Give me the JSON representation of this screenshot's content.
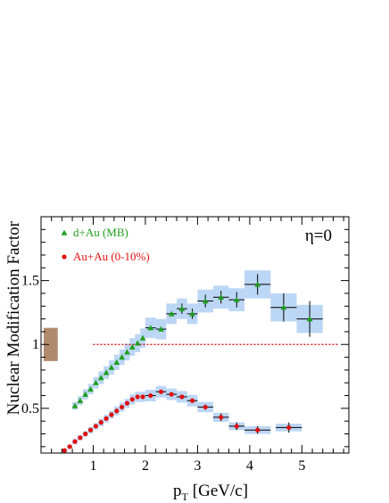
{
  "chart_data": {
    "type": "scatter",
    "title": "",
    "annotation": "η=0",
    "xlabel": "p",
    "xlabel_sub": "T",
    "xlabel_unit": "[GeV/c]",
    "ylabel": "Nuclear Modification Factor",
    "xlim": [
      0.0,
      5.9
    ],
    "ylim": [
      0.15,
      2.0
    ],
    "x_ticks": [
      {
        "value": 1,
        "label": "1"
      },
      {
        "value": 2,
        "label": "2"
      },
      {
        "value": 3,
        "label": "3"
      },
      {
        "value": 4,
        "label": "4"
      },
      {
        "value": 5,
        "label": "5"
      }
    ],
    "y_ticks": [
      {
        "value": 0.5,
        "label": "0.5"
      },
      {
        "value": 1.0,
        "label": "1"
      },
      {
        "value": 1.5,
        "label": "1.5"
      }
    ],
    "reference_line": {
      "y": 1.0,
      "x_from": 1.0,
      "x_to": 5.7,
      "color": "#cc0000"
    },
    "normalization_box": {
      "x_from": 0.05,
      "x_to": 0.32,
      "y_from": 0.87,
      "y_to": 1.13,
      "color": "#b08a6e"
    },
    "legend": {
      "placement": "top-left"
    },
    "series": [
      {
        "name": "d+Au (MB)",
        "marker": "triangle",
        "color": "#1f9e1f",
        "band_color": "#bcd6f5",
        "points": [
          {
            "x": 0.65,
            "y": 0.52,
            "sys": 0.03,
            "xerr": 0.05
          },
          {
            "x": 0.75,
            "y": 0.56,
            "sys": 0.035,
            "xerr": 0.05
          },
          {
            "x": 0.85,
            "y": 0.61,
            "sys": 0.04,
            "xerr": 0.05
          },
          {
            "x": 0.95,
            "y": 0.65,
            "sys": 0.04,
            "xerr": 0.05
          },
          {
            "x": 1.05,
            "y": 0.7,
            "sys": 0.045,
            "xerr": 0.05
          },
          {
            "x": 1.15,
            "y": 0.74,
            "sys": 0.05,
            "xerr": 0.05
          },
          {
            "x": 1.25,
            "y": 0.78,
            "sys": 0.05,
            "xerr": 0.05
          },
          {
            "x": 1.35,
            "y": 0.82,
            "sys": 0.055,
            "xerr": 0.05
          },
          {
            "x": 1.45,
            "y": 0.86,
            "sys": 0.06,
            "xerr": 0.05
          },
          {
            "x": 1.55,
            "y": 0.9,
            "sys": 0.06,
            "xerr": 0.05
          },
          {
            "x": 1.65,
            "y": 0.94,
            "sys": 0.065,
            "xerr": 0.05
          },
          {
            "x": 1.75,
            "y": 0.98,
            "sys": 0.07,
            "xerr": 0.05
          },
          {
            "x": 1.85,
            "y": 1.01,
            "sys": 0.07,
            "xerr": 0.05
          },
          {
            "x": 1.95,
            "y": 1.05,
            "sys": 0.075,
            "xerr": 0.05
          },
          {
            "x": 2.1,
            "y": 1.13,
            "sys": 0.08,
            "xerr": 0.1
          },
          {
            "x": 2.3,
            "y": 1.12,
            "sys": 0.08,
            "xerr": 0.1
          },
          {
            "x": 2.5,
            "y": 1.24,
            "sys": 0.08,
            "xerr": 0.1
          },
          {
            "x": 2.7,
            "y": 1.28,
            "sys": 0.08,
            "xerr": 0.1,
            "stat": 0.04
          },
          {
            "x": 2.9,
            "y": 1.24,
            "sys": 0.08,
            "xerr": 0.1,
            "stat": 0.04
          },
          {
            "x": 3.15,
            "y": 1.34,
            "sys": 0.09,
            "xerr": 0.15,
            "stat": 0.05
          },
          {
            "x": 3.45,
            "y": 1.37,
            "sys": 0.09,
            "xerr": 0.15,
            "stat": 0.05
          },
          {
            "x": 3.75,
            "y": 1.35,
            "sys": 0.09,
            "xerr": 0.15,
            "stat": 0.06
          },
          {
            "x": 4.15,
            "y": 1.47,
            "sys": 0.11,
            "xerr": 0.25,
            "stat": 0.08
          },
          {
            "x": 4.65,
            "y": 1.29,
            "sys": 0.11,
            "xerr": 0.25,
            "stat": 0.11
          },
          {
            "x": 5.15,
            "y": 1.2,
            "sys": 0.11,
            "xerr": 0.25,
            "stat": 0.14
          }
        ]
      },
      {
        "name": "Au+Au (0-10%)",
        "marker": "circle",
        "color": "#e01010",
        "band_color": "#bcd6f5",
        "points": [
          {
            "x": 0.45,
            "y": 0.17,
            "sys": 0.015,
            "xerr": 0.05
          },
          {
            "x": 0.55,
            "y": 0.2,
            "sys": 0.015,
            "xerr": 0.05
          },
          {
            "x": 0.65,
            "y": 0.24,
            "sys": 0.02,
            "xerr": 0.05
          },
          {
            "x": 0.75,
            "y": 0.27,
            "sys": 0.02,
            "xerr": 0.05
          },
          {
            "x": 0.85,
            "y": 0.3,
            "sys": 0.02,
            "xerr": 0.05
          },
          {
            "x": 0.95,
            "y": 0.33,
            "sys": 0.025,
            "xerr": 0.05
          },
          {
            "x": 1.05,
            "y": 0.36,
            "sys": 0.025,
            "xerr": 0.05
          },
          {
            "x": 1.15,
            "y": 0.39,
            "sys": 0.03,
            "xerr": 0.05
          },
          {
            "x": 1.25,
            "y": 0.42,
            "sys": 0.03,
            "xerr": 0.05
          },
          {
            "x": 1.35,
            "y": 0.45,
            "sys": 0.03,
            "xerr": 0.05
          },
          {
            "x": 1.45,
            "y": 0.48,
            "sys": 0.035,
            "xerr": 0.05
          },
          {
            "x": 1.55,
            "y": 0.51,
            "sys": 0.035,
            "xerr": 0.05
          },
          {
            "x": 1.65,
            "y": 0.54,
            "sys": 0.035,
            "xerr": 0.05
          },
          {
            "x": 1.75,
            "y": 0.57,
            "sys": 0.04,
            "xerr": 0.05
          },
          {
            "x": 1.85,
            "y": 0.59,
            "sys": 0.04,
            "xerr": 0.05
          },
          {
            "x": 1.95,
            "y": 0.59,
            "sys": 0.04,
            "xerr": 0.05
          },
          {
            "x": 2.1,
            "y": 0.6,
            "sys": 0.045,
            "xerr": 0.1
          },
          {
            "x": 2.3,
            "y": 0.63,
            "sys": 0.045,
            "xerr": 0.1
          },
          {
            "x": 2.5,
            "y": 0.61,
            "sys": 0.045,
            "xerr": 0.1
          },
          {
            "x": 2.7,
            "y": 0.59,
            "sys": 0.045,
            "xerr": 0.1
          },
          {
            "x": 2.9,
            "y": 0.56,
            "sys": 0.045,
            "xerr": 0.1
          },
          {
            "x": 3.15,
            "y": 0.51,
            "sys": 0.04,
            "xerr": 0.15,
            "stat": 0.02
          },
          {
            "x": 3.45,
            "y": 0.43,
            "sys": 0.035,
            "xerr": 0.15,
            "stat": 0.03
          },
          {
            "x": 3.75,
            "y": 0.36,
            "sys": 0.03,
            "xerr": 0.15,
            "stat": 0.03
          },
          {
            "x": 4.15,
            "y": 0.33,
            "sys": 0.03,
            "xerr": 0.25,
            "stat": 0.03
          },
          {
            "x": 4.75,
            "y": 0.35,
            "sys": 0.03,
            "xerr": 0.25,
            "stat": 0.04
          }
        ]
      }
    ]
  }
}
